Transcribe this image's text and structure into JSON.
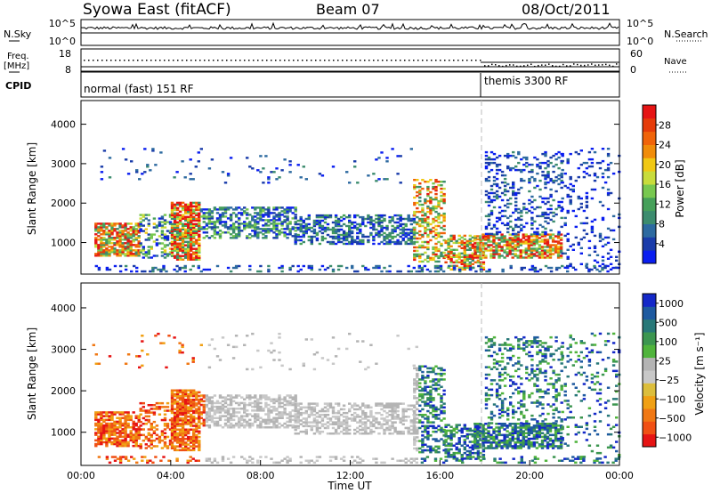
{
  "header": {
    "left": "Syowa East (fitACF)",
    "center": "Beam 07",
    "right": "08/Oct/2011"
  },
  "status_panel": {
    "nsky_label": "N.Sky",
    "nsky_ticks": [
      "10^5",
      "10^0"
    ],
    "nsearch_label": "N.Search",
    "nsearch_ticks": [
      "10^5",
      "10^0"
    ],
    "freq_label_1": "Freq.",
    "freq_label_2": "[MHz]",
    "freq_ticks": [
      "18",
      "8"
    ],
    "nave_label": "Nave",
    "nave_ticks": [
      "60",
      "0"
    ],
    "cpid_label": "CPID",
    "cpid_segments": [
      {
        "label": "normal (fast) 151 RF",
        "start_hour": 0,
        "end_hour": 18.0
      },
      {
        "label": "themis 3300 RF",
        "start_hour": 18.0,
        "end_hour": 24
      }
    ]
  },
  "colors": {
    "power": [
      "#0a1ef0",
      "#1a3caa",
      "#2d6aa0",
      "#3c8c6e",
      "#46a05a",
      "#78c850",
      "#c8dc3c",
      "#f0c814",
      "#f08c0a",
      "#f0640a",
      "#e63c0a",
      "#e61414"
    ],
    "velocity": [
      "#1428c8",
      "#1e5aa0",
      "#287878",
      "#3c9650",
      "#50b43c",
      "#b4b4b4",
      "#c8c8c8",
      "#dcbe3c",
      "#f0a014",
      "#f07814",
      "#f05014",
      "#e61414"
    ]
  },
  "chart_data": [
    {
      "type": "heatmap",
      "name": "power",
      "xlabel": "",
      "ylabel": "Slant Range [km]",
      "xlim": [
        0,
        24
      ],
      "ylim": [
        200,
        4600
      ],
      "yticks": [
        1000,
        2000,
        3000,
        4000
      ],
      "colorbar_label": "Power [dB]",
      "colorbar_ticks": [
        "4",
        "8",
        "12",
        "16",
        "20",
        "24",
        "28"
      ],
      "colorbar_range": [
        0,
        30
      ]
    },
    {
      "type": "heatmap",
      "name": "velocity",
      "xlabel": "Time UT",
      "ylabel": "Slant Range [km]",
      "xlim": [
        0,
        24
      ],
      "ylim": [
        200,
        4600
      ],
      "yticks": [
        1000,
        2000,
        3000,
        4000
      ],
      "xticks": [
        "00:00",
        "04:00",
        "08:00",
        "12:00",
        "16:00",
        "20:00",
        "00:00"
      ],
      "colorbar_label": "Velocity [m s⁻¹]",
      "colorbar_ticks": [
        "1000",
        "500",
        "100",
        "25",
        "−25",
        "−100",
        "−500",
        "−1000"
      ]
    }
  ]
}
